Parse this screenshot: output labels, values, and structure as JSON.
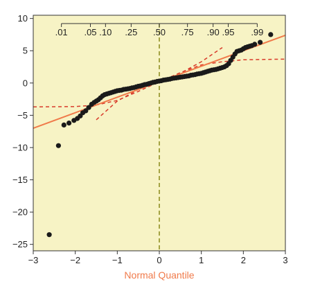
{
  "chart_data": {
    "type": "scatter",
    "title": "",
    "xlabel": "Normal Quantile",
    "ylabel": "",
    "xlim": [
      -3,
      3
    ],
    "ylim": [
      -26,
      10.5
    ],
    "x_ticks": [
      -3,
      -2,
      -1,
      0,
      1,
      2,
      3
    ],
    "y_ticks": [
      10,
      5,
      0,
      -5,
      -10,
      -15,
      -20,
      -25
    ],
    "x_tick_labels": [
      "−3",
      "−2",
      "−1",
      "0",
      "1",
      "2",
      "3"
    ],
    "y_tick_labels": [
      "10",
      "5",
      "0",
      "−5",
      "−10",
      "−15",
      "−20",
      "−25"
    ],
    "probability_ticks": [
      {
        "label": ".01",
        "q": -2.33
      },
      {
        "label": ".05",
        "q": -1.64
      },
      {
        "label": ".10",
        "q": -1.28
      },
      {
        "label": ".25",
        "q": -0.67
      },
      {
        "label": ".50",
        "q": 0
      },
      {
        "label": ".75",
        "q": 0.67
      },
      {
        "label": ".90",
        "q": 1.28
      },
      {
        "label": ".95",
        "q": 1.64
      },
      {
        "label": ".99",
        "q": 2.33
      }
    ],
    "grid": false,
    "fit_line": {
      "intercept": 0.2,
      "slope": 2.4
    },
    "confidence_band": {
      "lower": {
        "x": [
          -3,
          -2,
          -1.5,
          -1,
          -0.5,
          0,
          0.5,
          1,
          1.5,
          2,
          3
        ],
        "y": [
          -3.7,
          -3.65,
          -3.4,
          -2.7,
          -1.3,
          0.2,
          1.6,
          2.8,
          3.3,
          3.6,
          3.7
        ]
      },
      "upper": {
        "x": [
          -1.5,
          -1,
          -0.5,
          0,
          0.5,
          1,
          1.5
        ],
        "y": [
          -5.7,
          -2.8,
          -1.0,
          0.2,
          1.5,
          3.3,
          5.5
        ]
      }
    },
    "median_line": {
      "x": 0
    },
    "points": {
      "x": [
        -2.62,
        -2.4,
        -2.27,
        -2.15,
        -2.03,
        -1.95,
        -1.88,
        -1.82,
        -1.75,
        -1.68,
        -1.61,
        -1.55,
        -1.5,
        -1.45,
        -1.4,
        -1.35,
        -1.3,
        -1.25,
        -1.2,
        -1.15,
        -1.1,
        -1.05,
        -1.0,
        -0.95,
        -0.9,
        -0.85,
        -0.8,
        -0.75,
        -0.7,
        -0.65,
        -0.6,
        -0.55,
        -0.5,
        -0.45,
        -0.4,
        -0.35,
        -0.3,
        -0.25,
        -0.2,
        -0.15,
        -0.1,
        -0.05,
        0.0,
        0.05,
        0.1,
        0.15,
        0.2,
        0.25,
        0.3,
        0.35,
        0.4,
        0.45,
        0.5,
        0.55,
        0.6,
        0.65,
        0.7,
        0.75,
        0.8,
        0.85,
        0.9,
        0.95,
        1.0,
        1.05,
        1.1,
        1.15,
        1.2,
        1.25,
        1.3,
        1.35,
        1.4,
        1.45,
        1.5,
        1.55,
        1.6,
        1.65,
        1.7,
        1.75,
        1.8,
        1.85,
        1.9,
        1.95,
        2.0,
        2.05,
        2.1,
        2.15,
        2.2,
        2.27,
        2.4,
        2.65
      ],
      "y": [
        -23.5,
        -9.7,
        -6.5,
        -6.2,
        -5.8,
        -5.5,
        -5.1,
        -4.6,
        -4.3,
        -3.8,
        -3.3,
        -3.0,
        -2.8,
        -2.6,
        -2.3,
        -2.0,
        -1.8,
        -1.7,
        -1.6,
        -1.5,
        -1.4,
        -1.3,
        -1.2,
        -1.15,
        -1.1,
        -1.0,
        -0.95,
        -0.9,
        -0.85,
        -0.75,
        -0.7,
        -0.6,
        -0.5,
        -0.45,
        -0.35,
        -0.25,
        -0.2,
        -0.1,
        0.0,
        0.1,
        0.15,
        0.25,
        0.3,
        0.35,
        0.45,
        0.5,
        0.55,
        0.6,
        0.7,
        0.75,
        0.8,
        0.85,
        0.9,
        0.95,
        1.0,
        1.05,
        1.1,
        1.2,
        1.25,
        1.3,
        1.4,
        1.45,
        1.5,
        1.6,
        1.7,
        1.8,
        1.9,
        2.0,
        2.05,
        2.1,
        2.2,
        2.3,
        2.4,
        2.5,
        2.7,
        3.0,
        3.5,
        4.0,
        4.5,
        4.9,
        5.0,
        5.1,
        5.3,
        5.5,
        5.6,
        5.7,
        5.8,
        6.0,
        6.3,
        7.5
      ]
    },
    "colors": {
      "plot_background": "#f7f3c5",
      "points": "#1a1a1a",
      "fit_line": "#f07a4a",
      "confidence_band": "#d83a2a",
      "median_line": "#8a8a1a",
      "axis_title": "#f07a4a",
      "axis": "#333333"
    }
  }
}
